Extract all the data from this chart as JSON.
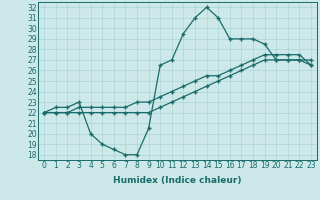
{
  "xlabel": "Humidex (Indice chaleur)",
  "ylabel": "",
  "bg_color": "#cce8e8",
  "line_color": "#1a6b6b",
  "xlim": [
    -0.5,
    23.5
  ],
  "ylim": [
    17.5,
    32.5
  ],
  "xticks": [
    0,
    1,
    2,
    3,
    4,
    5,
    6,
    7,
    8,
    9,
    10,
    11,
    12,
    13,
    14,
    15,
    16,
    17,
    18,
    19,
    20,
    21,
    22,
    23
  ],
  "yticks": [
    18,
    19,
    20,
    21,
    22,
    23,
    24,
    25,
    26,
    27,
    28,
    29,
    30,
    31,
    32
  ],
  "series1_x": [
    0,
    1,
    2,
    3,
    4,
    5,
    6,
    7,
    8,
    9,
    10,
    11,
    12,
    13,
    14,
    15,
    16,
    17,
    18,
    19,
    20,
    21,
    22,
    23
  ],
  "series1_y": [
    22.0,
    22.5,
    22.5,
    23.0,
    20.0,
    19.0,
    18.5,
    18.0,
    18.0,
    20.5,
    26.5,
    27.0,
    29.5,
    31.0,
    32.0,
    31.0,
    29.0,
    29.0,
    29.0,
    28.5,
    27.0,
    27.0,
    27.0,
    27.0
  ],
  "series2_x": [
    0,
    1,
    2,
    3,
    4,
    5,
    6,
    7,
    8,
    9,
    10,
    11,
    12,
    13,
    14,
    15,
    16,
    17,
    18,
    19,
    20,
    21,
    22,
    23
  ],
  "series2_y": [
    22.0,
    22.0,
    22.0,
    22.5,
    22.5,
    22.5,
    22.5,
    22.5,
    23.0,
    23.0,
    23.5,
    24.0,
    24.5,
    25.0,
    25.5,
    25.5,
    26.0,
    26.5,
    27.0,
    27.5,
    27.5,
    27.5,
    27.5,
    26.5
  ],
  "series3_x": [
    0,
    1,
    2,
    3,
    4,
    5,
    6,
    7,
    8,
    9,
    10,
    11,
    12,
    13,
    14,
    15,
    16,
    17,
    18,
    19,
    20,
    21,
    22,
    23
  ],
  "series3_y": [
    22.0,
    22.0,
    22.0,
    22.0,
    22.0,
    22.0,
    22.0,
    22.0,
    22.0,
    22.0,
    22.5,
    23.0,
    23.5,
    24.0,
    24.5,
    25.0,
    25.5,
    26.0,
    26.5,
    27.0,
    27.0,
    27.0,
    27.0,
    26.5
  ],
  "grid_color": "#aad4d4",
  "marker": "+",
  "tick_fontsize": 5.5,
  "xlabel_fontsize": 6.5
}
